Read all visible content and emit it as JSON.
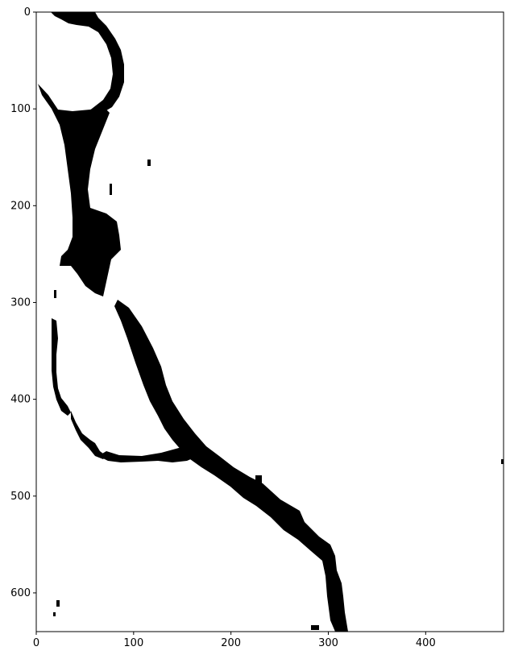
{
  "figure": {
    "kind": "binary mask image shown with matplotlib imshow",
    "colormap": "gray (black = mask, white = background)",
    "colors": {
      "foreground": "#000000",
      "background": "#ffffff",
      "axes": "#000000"
    }
  },
  "x_axis": {
    "range": [
      0,
      480
    ],
    "ticks": [
      "0",
      "100",
      "200",
      "300",
      "400"
    ]
  },
  "y_axis": {
    "range": [
      0,
      640
    ],
    "inverted": true,
    "ticks": [
      "0",
      "100",
      "200",
      "300",
      "400",
      "500",
      "600"
    ]
  },
  "chart_data": {
    "type": "heatmap",
    "title": "",
    "xlabel": "",
    "ylabel": "",
    "xlim": [
      0,
      480
    ],
    "ylim": [
      640,
      0
    ],
    "x_ticks": [
      0,
      100,
      200,
      300,
      400
    ],
    "y_ticks": [
      0,
      100,
      200,
      300,
      400,
      500,
      600
    ],
    "grid": false,
    "legend": "none",
    "description_of_mask": "thick black vessel-like band running from top-left (x≈10–80,y≈0) down to bottom (x≈300–315,y≈640), with a loop near top-left and a thin branch on the left side"
  }
}
